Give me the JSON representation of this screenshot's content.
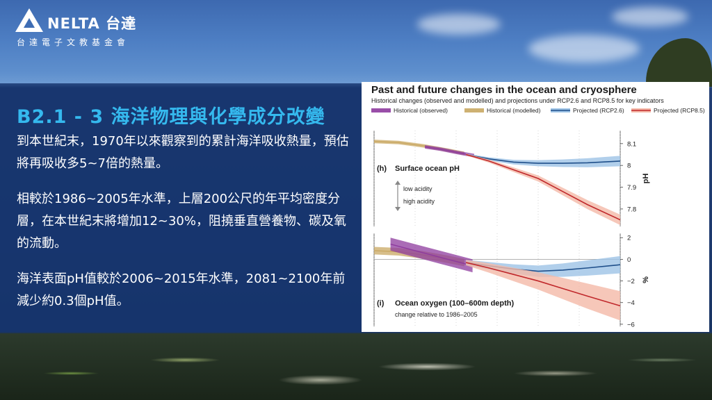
{
  "logo": {
    "brand_text": "NELTA 台達",
    "sub_text": "台達電子文教基金會"
  },
  "slide": {
    "title": "B2.1 - 3 海洋物理與化學成分改變",
    "paragraphs": [
      "到本世紀末，1970年以來觀察到的累計海洋吸收熱量，預估將再吸收多5~7倍的熱量。",
      "相較於1986~2005年水準，上層200公尺的年平均密度分層，在本世紀末將增加12~30%，阻撓垂直營養物、碳及氧的流動。",
      "海洋表面pH值較於2006~2015年水準，2081~2100年前減少約0.3個pH值。"
    ]
  },
  "colors": {
    "historical_observed": "#8e3b9e",
    "historical_modelled": "#c9a863",
    "rcp26": "#1f4f8a",
    "rcp85": "#c0282b",
    "rcp26_band": "#9dc3e6",
    "rcp85_band": "#f4b9a8",
    "title_cyan": "#35b9ee"
  },
  "chart_data": {
    "title": "Past and future changes in the ocean and cryosphere",
    "subtitle": "Historical changes (observed and modelled) and projections under RCP2.6 and RCP8.5 for key indicators",
    "legend": [
      {
        "key": "historical_observed",
        "label": "Historical (observed)"
      },
      {
        "key": "historical_modelled",
        "label": "Historical (modelled)"
      },
      {
        "key": "rcp26",
        "label": "Projected (RCP2.6)"
      },
      {
        "key": "rcp85",
        "label": "Projected (RCP8.5)"
      }
    ],
    "legend_position": "top",
    "x_range": [
      1950,
      2100
    ],
    "panels": [
      {
        "id": "h",
        "type": "line",
        "label": "(h)",
        "title": "Surface ocean pH",
        "ylabel": "pH",
        "yticks": [
          7.8,
          7.9,
          8.0,
          8.1
        ],
        "ylim": [
          7.72,
          8.16
        ],
        "annotations": [
          "low acidity",
          "high acidity"
        ],
        "series": [
          {
            "key": "historical_modelled",
            "x": [
              1950,
              1965,
              1980,
              1995,
              2005
            ],
            "y": [
              8.11,
              8.105,
              8.09,
              8.07,
              8.055
            ]
          },
          {
            "key": "historical_observed",
            "x": [
              1981,
              1990,
              2000,
              2011
            ],
            "y": [
              8.085,
              8.075,
              8.06,
              8.045
            ]
          },
          {
            "key": "rcp26",
            "x": [
              2006,
              2020,
              2035,
              2050,
              2065,
              2080,
              2100
            ],
            "y": [
              8.05,
              8.03,
              8.015,
              8.01,
              8.01,
              8.012,
              8.02
            ]
          },
          {
            "key": "rcp85",
            "x": [
              2006,
              2020,
              2035,
              2050,
              2065,
              2080,
              2100
            ],
            "y": [
              8.05,
              8.02,
              7.98,
              7.94,
              7.88,
              7.82,
              7.75
            ]
          }
        ]
      },
      {
        "id": "i",
        "type": "line",
        "label": "(i)",
        "title": "Ocean oxygen (100–600m depth)",
        "note": "change relative to 1986–2005",
        "ylabel": "%",
        "yticks": [
          2,
          0,
          -2,
          -4,
          -6
        ],
        "ylim": [
          -6.2,
          2.4
        ],
        "series": [
          {
            "key": "historical_modelled",
            "x": [
              1950,
              1965,
              1980,
              1995,
              2005
            ],
            "y": [
              0.8,
              0.7,
              0.4,
              0.0,
              -0.3
            ]
          },
          {
            "key": "historical_observed",
            "x": [
              1960,
              1980,
              2000,
              2010
            ],
            "y": [
              1.4,
              0.6,
              -0.2,
              -0.6
            ]
          },
          {
            "key": "rcp26",
            "x": [
              2006,
              2020,
              2035,
              2050,
              2065,
              2080,
              2100
            ],
            "y": [
              -0.3,
              -0.6,
              -0.9,
              -1.1,
              -1.0,
              -0.8,
              -0.5
            ]
          },
          {
            "key": "rcp85",
            "x": [
              2006,
              2020,
              2035,
              2050,
              2065,
              2080,
              2100
            ],
            "y": [
              -0.3,
              -0.8,
              -1.4,
              -2.0,
              -2.7,
              -3.4,
              -4.3
            ]
          }
        ]
      }
    ]
  }
}
